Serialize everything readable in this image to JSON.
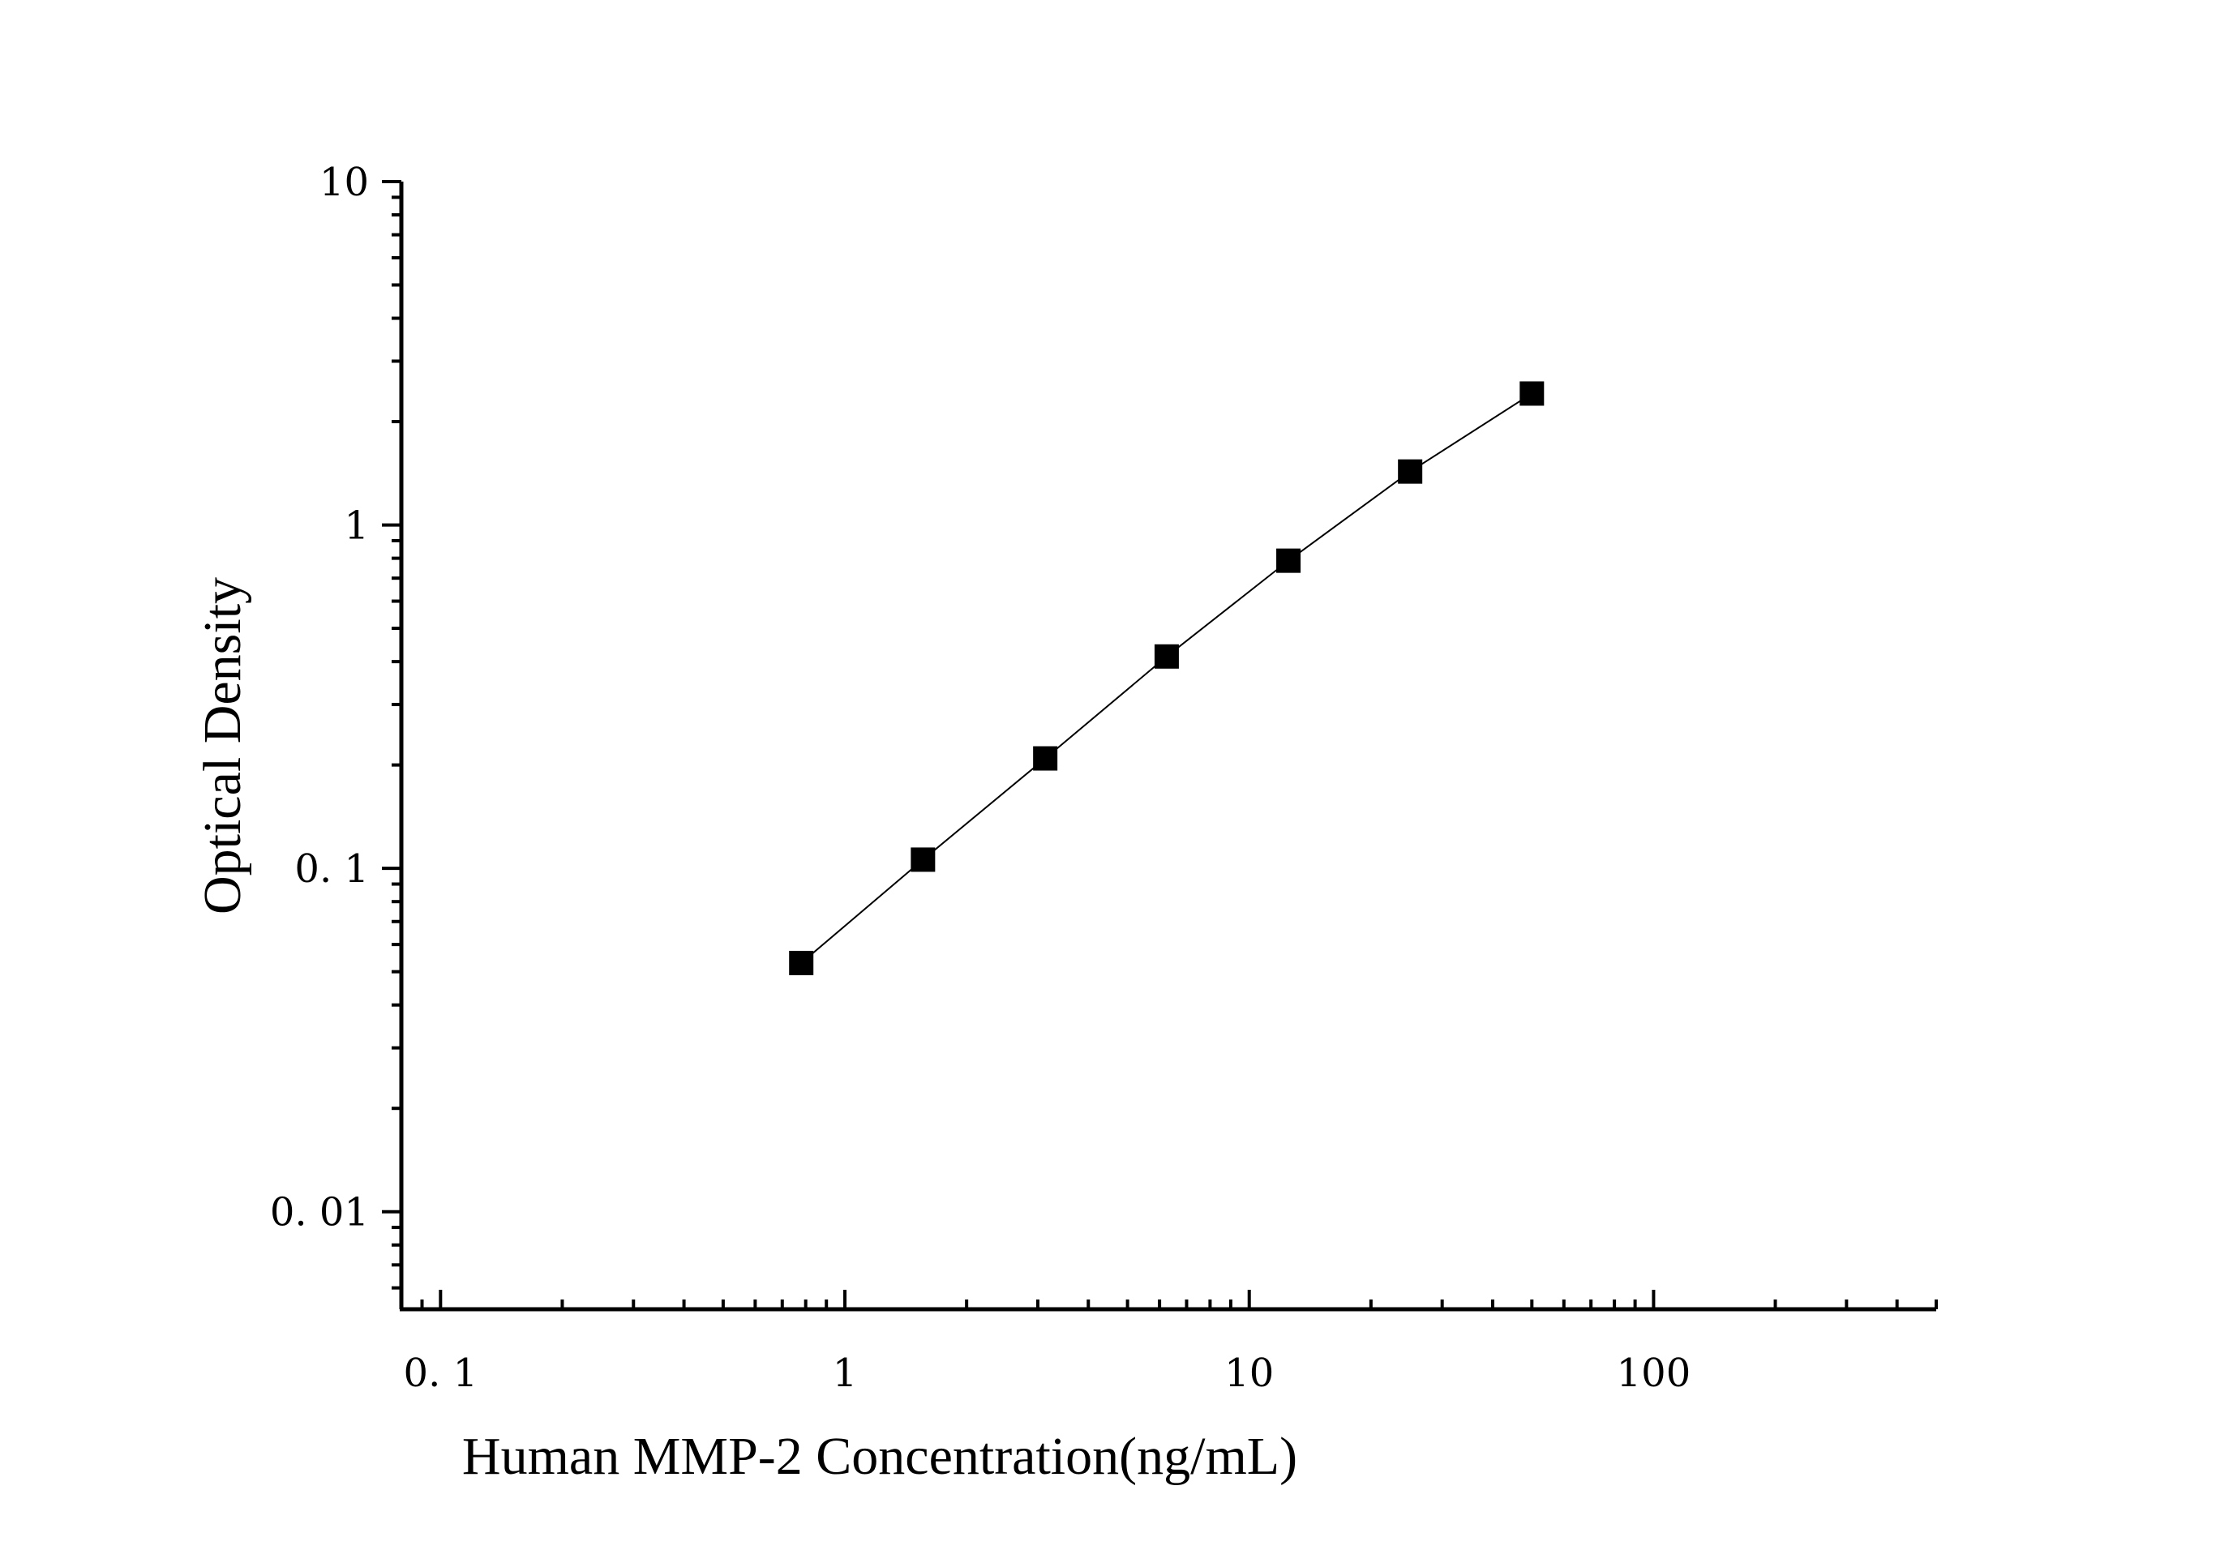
{
  "chart_data": {
    "type": "scatter",
    "xlabel": "Human MMP-2 Concentration(ng/mL)",
    "ylabel": "Optical Density",
    "x_scale": "log",
    "y_scale": "log",
    "xlim": [
      0.08,
      500
    ],
    "ylim": [
      0.0052,
      10
    ],
    "x_ticks": [
      {
        "value": 0.1,
        "label": "0. 1"
      },
      {
        "value": 1,
        "label": "1"
      },
      {
        "value": 10,
        "label": "10"
      },
      {
        "value": 100,
        "label": "100"
      }
    ],
    "y_ticks": [
      {
        "value": 0.01,
        "label": "0. 01"
      },
      {
        "value": 0.1,
        "label": "0. 1"
      },
      {
        "value": 1,
        "label": "1"
      },
      {
        "value": 10,
        "label": "10"
      }
    ],
    "grid": false,
    "legend": "none",
    "series": [
      {
        "marker": "square",
        "line": true,
        "color": "#000000",
        "points": [
          {
            "x": 0.78,
            "y": 0.053
          },
          {
            "x": 1.56,
            "y": 0.106
          },
          {
            "x": 3.13,
            "y": 0.209
          },
          {
            "x": 6.25,
            "y": 0.414
          },
          {
            "x": 12.5,
            "y": 0.787
          },
          {
            "x": 25,
            "y": 1.431
          },
          {
            "x": 50,
            "y": 2.414
          }
        ]
      }
    ]
  }
}
